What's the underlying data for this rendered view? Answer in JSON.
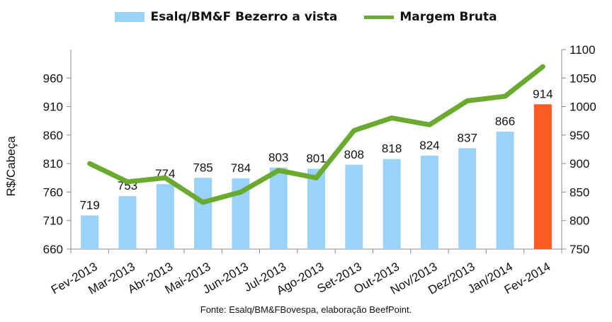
{
  "chart_data": {
    "type": "bar",
    "categories": [
      "Fev-2013",
      "Mar-2013",
      "Abr-2013",
      "Mai-2013",
      "Jun-2013",
      "Jul-2013",
      "Ago-2013",
      "Set-2013",
      "Out-2013",
      "Nov/2013",
      "Dez/2013",
      "Jan/2014",
      "Fev-2014"
    ],
    "series": [
      {
        "name": "Esalq/BM&F Bezerro a vista",
        "type": "bar",
        "axis": "left",
        "values": [
          719,
          753,
          774,
          785,
          784,
          803,
          801,
          808,
          818,
          824,
          837,
          866,
          914
        ],
        "color": "#99d2fa",
        "highlight_color": "#fc5a25",
        "highlight_index": 12
      },
      {
        "name": "Margem Bruta",
        "type": "line",
        "axis": "right",
        "values": [
          900,
          868,
          875,
          832,
          850,
          888,
          875,
          958,
          980,
          968,
          1010,
          1018,
          1070
        ],
        "color": "#6aab2f"
      }
    ],
    "ylabel": "R$/Cabeça",
    "xlabel": "",
    "ylim": [
      660,
      1010
    ],
    "yticks": [
      660,
      710,
      760,
      810,
      860,
      910,
      960
    ],
    "y2lim": [
      750,
      1100
    ],
    "y2ticks": [
      750,
      800,
      850,
      900,
      950,
      1000,
      1050,
      1100
    ],
    "legend_position": "top",
    "grid": false,
    "source": "Fonte: Esalq/BM&FBovespa, elaboração BeefPoint."
  }
}
